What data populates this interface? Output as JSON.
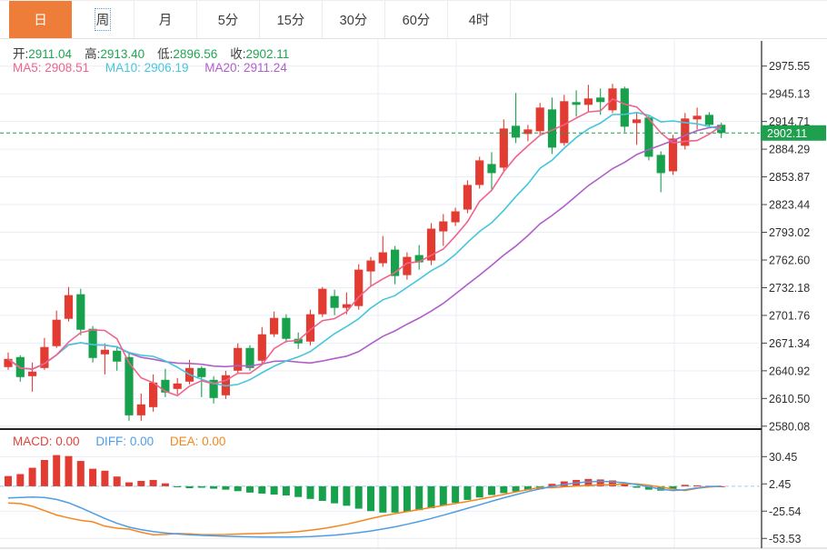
{
  "toolbar": {
    "tabs": [
      {
        "key": "day",
        "label": "日",
        "active": true,
        "focused": false
      },
      {
        "key": "week",
        "label": "周",
        "active": false,
        "focused": true
      },
      {
        "key": "month",
        "label": "月",
        "active": false,
        "focused": false
      },
      {
        "key": "5min",
        "label": "5分",
        "active": false,
        "focused": false
      },
      {
        "key": "15min",
        "label": "15分",
        "active": false,
        "focused": false
      },
      {
        "key": "30min",
        "label": "30分",
        "active": false,
        "focused": false
      },
      {
        "key": "60min",
        "label": "60分",
        "active": false,
        "focused": false
      },
      {
        "key": "4hour",
        "label": "4时",
        "active": false,
        "focused": false
      }
    ]
  },
  "info": {
    "open_label": "开:",
    "open": "2911.04",
    "high_label": "高:",
    "high": "2913.40",
    "low_label": "低:",
    "low": "2896.56",
    "close_label": "收:",
    "close": "2902.11"
  },
  "ma_legend": {
    "ma5_label": "MA5:",
    "ma5": "2908.51",
    "ma10_label": "MA10:",
    "ma10": "2906.19",
    "ma20_label": "MA20:",
    "ma20": "2911.24"
  },
  "macd_legend": {
    "macd_label": "MACD:",
    "macd": "0.00",
    "diff_label": "DIFF:",
    "diff": "0.00",
    "dea_label": "DEA:",
    "dea": "0.00"
  },
  "colors": {
    "up": "#e23b32",
    "down": "#18a14d",
    "tab_active": "#ef7d3a",
    "ma5": "#f0638c",
    "ma10": "#45c6dc",
    "ma20": "#b05fc8",
    "diff": "#4f9de4",
    "dea": "#f5861f",
    "macd_label": "#e2443c",
    "grid": "#e9eef5",
    "axis_text": "#2e2e2e",
    "axis_line": "#222222",
    "current_price_line": "#1fa14b",
    "current_price_tag_bg": "#1ea04f",
    "info_value_green": "#21a453",
    "zero_dash": "#9ecbea"
  },
  "chart_data": [
    {
      "type": "candlestick",
      "note": "daily K-line, red = up, green = down, values are [open, high, low, close]",
      "y_ticks": [
        "2975.55",
        "2945.13",
        "2914.71",
        "2884.29",
        "2853.87",
        "2823.44",
        "2793.02",
        "2762.60",
        "2732.18",
        "2701.76",
        "2671.34",
        "2640.92",
        "2610.50",
        "2580.08"
      ],
      "current_price": "2902.11",
      "v_gridlines_x": [
        416,
        502,
        742
      ],
      "overlays": {
        "ma5_period": 5,
        "ma10_period": 10,
        "ma20_period": 20
      },
      "candles": [
        [
          2645,
          2661,
          2642,
          2654
        ],
        [
          2656,
          2658,
          2629,
          2634
        ],
        [
          2635,
          2650,
          2618,
          2640
        ],
        [
          2644,
          2677,
          2642,
          2667
        ],
        [
          2668,
          2707,
          2666,
          2697
        ],
        [
          2698,
          2733,
          2695,
          2724
        ],
        [
          2725,
          2731,
          2680,
          2686
        ],
        [
          2687,
          2690,
          2650,
          2655
        ],
        [
          2659,
          2671,
          2637,
          2664
        ],
        [
          2663,
          2667,
          2641,
          2651
        ],
        [
          2656,
          2660,
          2586,
          2592
        ],
        [
          2592,
          2616,
          2586,
          2604
        ],
        [
          2601,
          2637,
          2596,
          2628
        ],
        [
          2631,
          2643,
          2612,
          2617
        ],
        [
          2621,
          2633,
          2615,
          2627
        ],
        [
          2629,
          2653,
          2626,
          2644
        ],
        [
          2644,
          2646,
          2612,
          2634
        ],
        [
          2631,
          2635,
          2605,
          2611
        ],
        [
          2614,
          2641,
          2610,
          2636
        ],
        [
          2641,
          2671,
          2638,
          2666
        ],
        [
          2666,
          2669,
          2641,
          2644
        ],
        [
          2652,
          2689,
          2648,
          2681
        ],
        [
          2681,
          2706,
          2678,
          2699
        ],
        [
          2699,
          2703,
          2672,
          2676
        ],
        [
          2676,
          2683,
          2665,
          2671
        ],
        [
          2673,
          2708,
          2669,
          2703
        ],
        [
          2703,
          2733,
          2700,
          2731
        ],
        [
          2723,
          2730,
          2702,
          2710
        ],
        [
          2710,
          2727,
          2703,
          2714
        ],
        [
          2712,
          2758,
          2708,
          2752
        ],
        [
          2750,
          2766,
          2734,
          2762
        ],
        [
          2759,
          2789,
          2755,
          2771
        ],
        [
          2774,
          2778,
          2736,
          2745
        ],
        [
          2746,
          2771,
          2741,
          2766
        ],
        [
          2768,
          2779,
          2752,
          2760
        ],
        [
          2762,
          2803,
          2757,
          2797
        ],
        [
          2794,
          2813,
          2778,
          2805
        ],
        [
          2804,
          2820,
          2800,
          2816
        ],
        [
          2818,
          2850,
          2814,
          2845
        ],
        [
          2845,
          2876,
          2841,
          2872
        ],
        [
          2868,
          2881,
          2840,
          2858
        ],
        [
          2864,
          2917,
          2860,
          2907
        ],
        [
          2910,
          2946,
          2891,
          2897
        ],
        [
          2901,
          2911,
          2893,
          2906
        ],
        [
          2904,
          2935,
          2900,
          2930
        ],
        [
          2928,
          2941,
          2879,
          2886
        ],
        [
          2891,
          2944,
          2888,
          2937
        ],
        [
          2936,
          2949,
          2920,
          2933
        ],
        [
          2933,
          2955,
          2925,
          2940
        ],
        [
          2941,
          2951,
          2922,
          2936
        ],
        [
          2927,
          2956,
          2924,
          2951
        ],
        [
          2951,
          2953,
          2903,
          2909
        ],
        [
          2913,
          2925,
          2889,
          2917
        ],
        [
          2919,
          2921,
          2872,
          2876
        ],
        [
          2878,
          2882,
          2837,
          2858
        ],
        [
          2860,
          2900,
          2856,
          2896
        ],
        [
          2888,
          2924,
          2884,
          2918
        ],
        [
          2917,
          2930,
          2906,
          2921
        ],
        [
          2922,
          2925,
          2908,
          2911
        ],
        [
          2911.04,
          2913.4,
          2896.56,
          2902.11
        ]
      ]
    },
    {
      "type": "macd",
      "y_ticks": [
        "30.45",
        "2.45",
        "-25.54",
        "-53.53"
      ],
      "histogram": [
        10.5,
        12.5,
        19,
        27,
        32,
        31,
        26,
        18,
        16,
        10,
        4,
        5.5,
        6.5,
        3,
        -1,
        -2,
        -1.5,
        -2.5,
        -3.5,
        -5,
        -6.5,
        -7.5,
        -8.5,
        -9.5,
        -11,
        -13,
        -15,
        -17.5,
        -20,
        -23,
        -25.5,
        -27,
        -27,
        -26,
        -24.5,
        -22.5,
        -20,
        -17,
        -14,
        -11.5,
        -9,
        -7,
        -5.5,
        -4,
        -3,
        2.5,
        5,
        6.5,
        7.5,
        7,
        6,
        2,
        -1.5,
        -3.5,
        -4.5,
        -3,
        1.5,
        1,
        0.5,
        0
      ],
      "diff": [
        -12,
        -11.5,
        -11,
        -11.5,
        -13.5,
        -17,
        -22,
        -27.5,
        -33,
        -38,
        -42,
        -44.5,
        -46.5,
        -48,
        -49,
        -49.8,
        -50.4,
        -50.9,
        -51.3,
        -51.6,
        -51.9,
        -52.1,
        -52.2,
        -52.2,
        -52,
        -51.6,
        -51,
        -50.1,
        -49,
        -47.6,
        -45.9,
        -43.9,
        -41.6,
        -39,
        -36.1,
        -33,
        -29.7,
        -26.2,
        -22.6,
        -19,
        -15.4,
        -11.9,
        -8.6,
        -5.5,
        -2.7,
        -0.2,
        1.9,
        3.5,
        4.6,
        5,
        4.6,
        3.6,
        1.8,
        -0.6,
        -3,
        -4.4,
        -3.6,
        -1.6,
        -0.4,
        0
      ],
      "dea": [
        -17.25,
        -17.75,
        -20.5,
        -25,
        -29.5,
        -32.5,
        -35,
        -36.5,
        -41,
        -43,
        -44,
        -47.25,
        -49.75,
        -49.5,
        -48.5,
        -48.8,
        -49.65,
        -49.65,
        -49.55,
        -49.1,
        -48.65,
        -48.35,
        -47.95,
        -47.45,
        -46.5,
        -45.1,
        -43.5,
        -41.35,
        -39,
        -36.1,
        -33.15,
        -30.4,
        -28.1,
        -26,
        -23.85,
        -21.75,
        -19.7,
        -17.7,
        -15.6,
        -13.25,
        -10.9,
        -8.4,
        -5.85,
        -3.5,
        -1.2,
        -1.45,
        -0.6,
        0.25,
        0.85,
        1.5,
        1.6,
        2.6,
        2.55,
        1.15,
        -0.75,
        -2.9,
        -4.35,
        -2.1,
        -0.65,
        0
      ]
    }
  ]
}
